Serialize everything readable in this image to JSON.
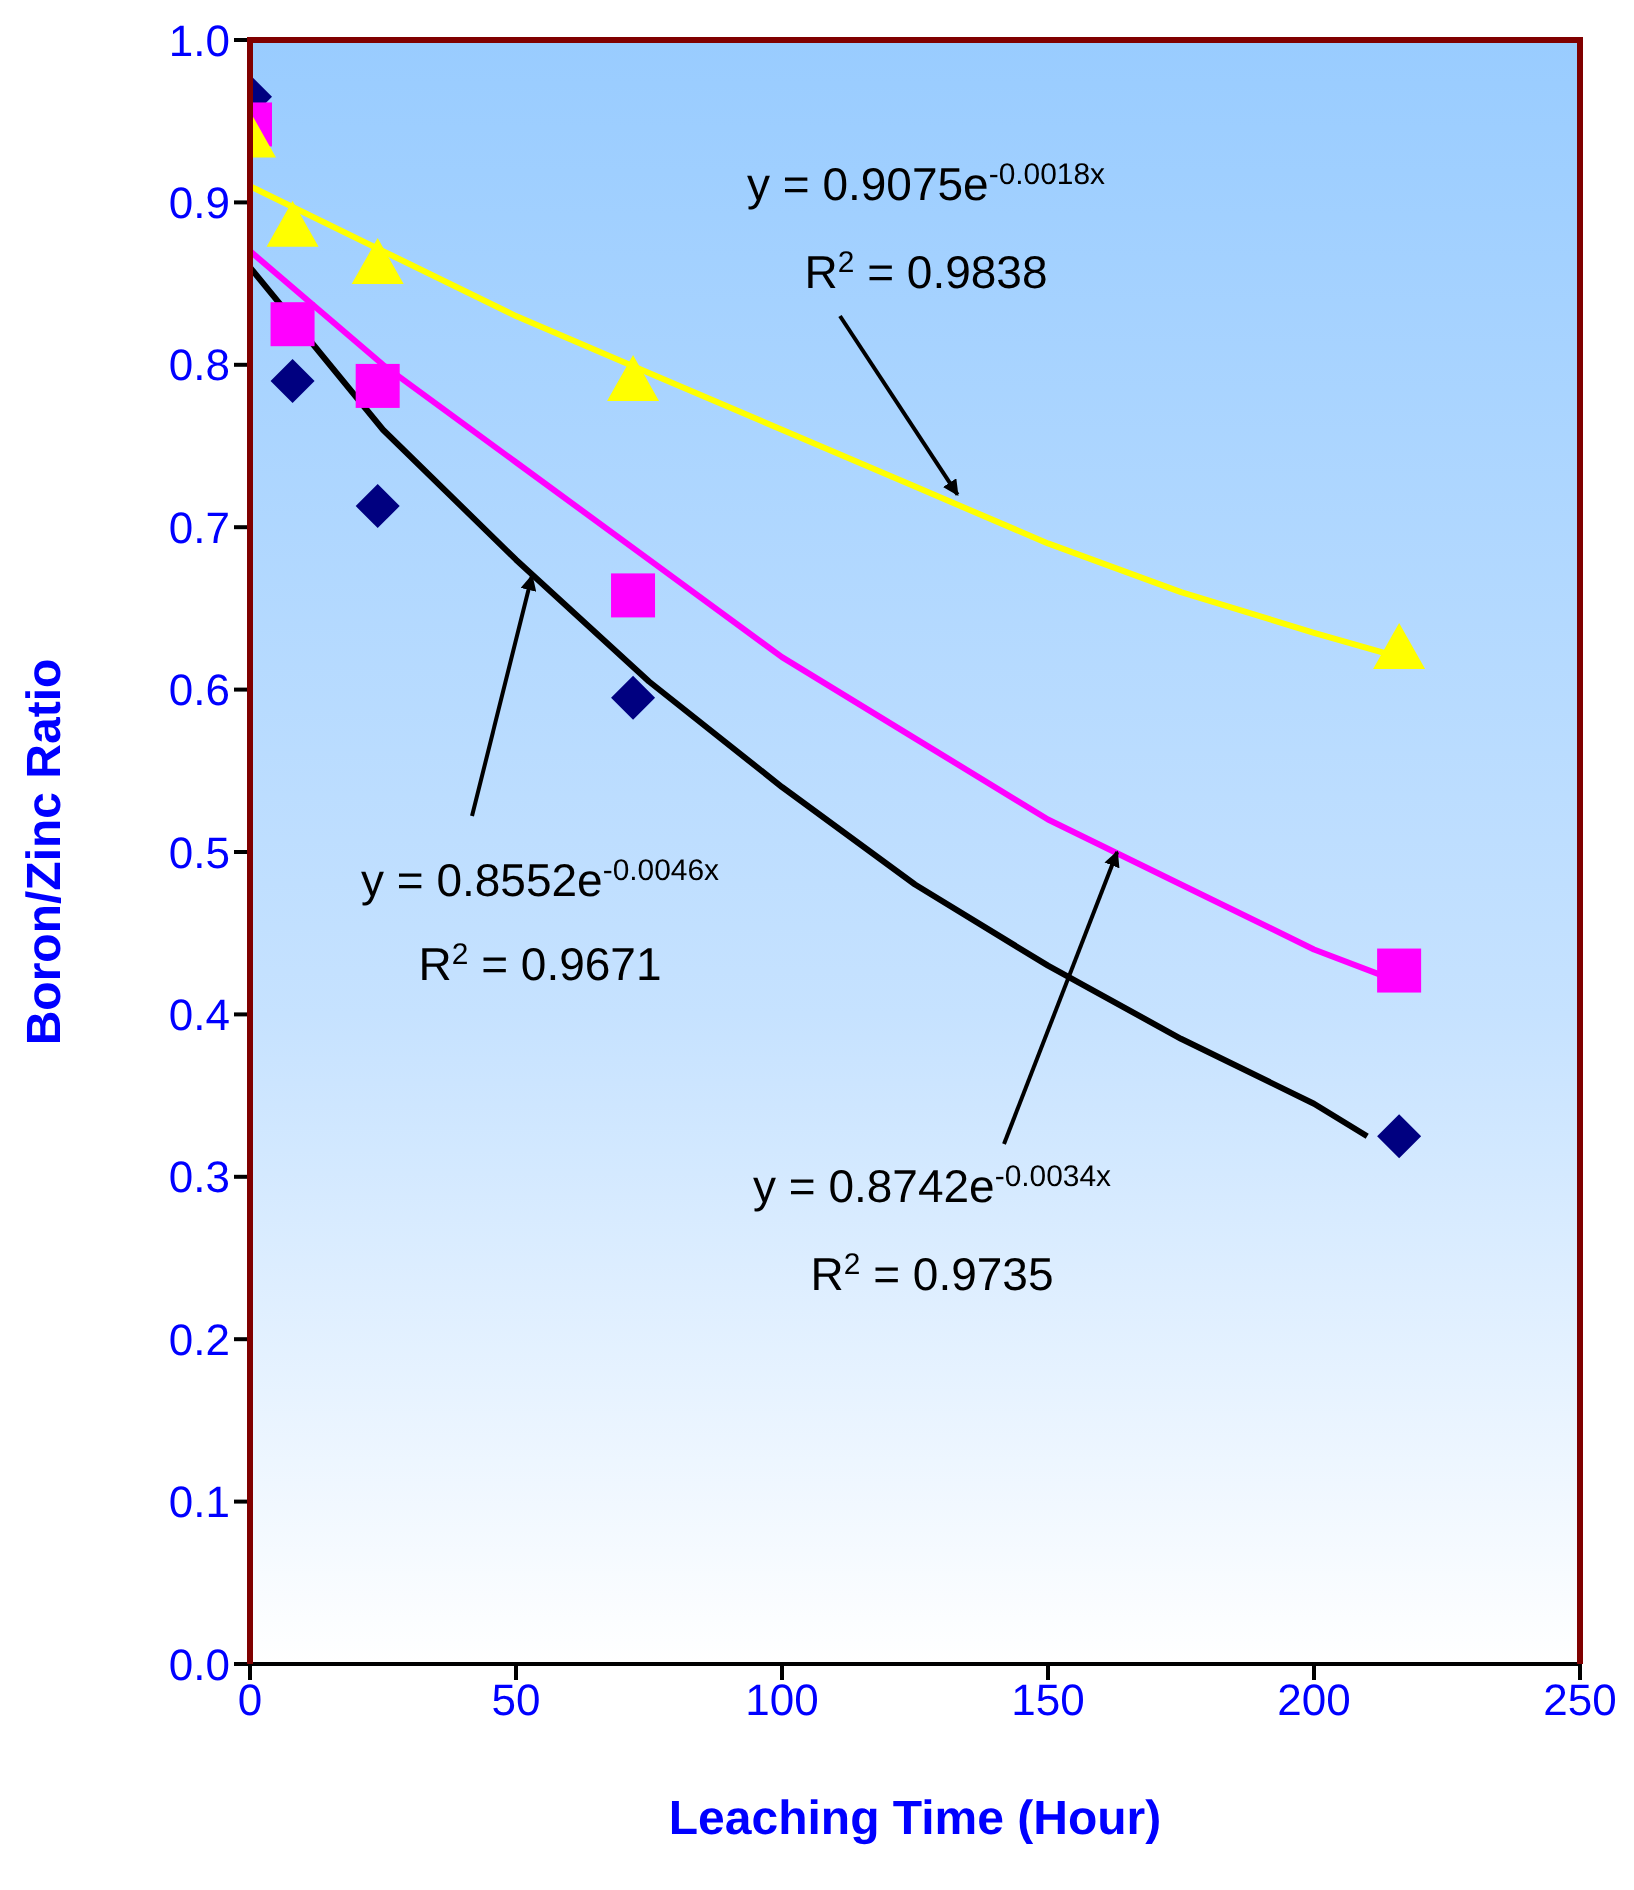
{
  "chart_data": {
    "type": "scatter",
    "xlabel": "Leaching Time (Hour)",
    "ylabel": "Boron/Zinc Ratio",
    "xlim": [
      0,
      250
    ],
    "xticks": [
      0,
      50,
      100,
      150,
      200,
      250
    ],
    "ylim": [
      0,
      1
    ],
    "yticks": [
      {
        "value": 0,
        "label": "0.0"
      },
      0.1,
      0.2,
      0.3,
      0.4,
      0.5,
      0.6,
      0.7,
      0.8,
      0.9,
      {
        "value": 1,
        "label": "1.0"
      }
    ],
    "grid": false,
    "legend": false,
    "x": [
      0,
      8,
      24,
      72,
      216
    ],
    "series": [
      {
        "color": "#000080",
        "marker": "diamond",
        "values": [
          0.965,
          0.79,
          0.713,
          0.595,
          0.325
        ]
      },
      {
        "color": "#ff00ff",
        "marker": "square",
        "values": [
          0.948,
          0.825,
          0.787,
          0.658,
          0.427
        ]
      },
      {
        "color": "#ffff00",
        "marker": "triangle",
        "values": [
          0.94,
          0.885,
          0.862,
          0.79,
          0.625
        ]
      },
      {
        "type": "line",
        "color": "#000000",
        "x": [
          0,
          25,
          50,
          75,
          100,
          125,
          150,
          175,
          200,
          210
        ],
        "values": [
          0.86,
          0.76,
          0.68,
          0.605,
          0.54,
          0.48,
          0.43,
          0.385,
          0.345,
          0.325
        ]
      },
      {
        "type": "line",
        "color": "#ff00ff",
        "x": [
          0,
          25,
          50,
          75,
          100,
          125,
          150,
          175,
          200,
          216
        ],
        "values": [
          0.87,
          0.8,
          0.74,
          0.68,
          0.62,
          0.57,
          0.52,
          0.48,
          0.44,
          0.42
        ]
      },
      {
        "type": "line",
        "color": "#ffff00",
        "x": [
          0,
          25,
          50,
          75,
          100,
          125,
          150,
          175,
          200,
          216
        ],
        "values": [
          0.91,
          0.87,
          0.83,
          0.795,
          0.76,
          0.725,
          0.69,
          0.66,
          0.635,
          0.62
        ]
      }
    ],
    "annotations": [
      "y = 0.9075e$^{-0.0018x}$",
      {
        "text": "R$^{2}$ = 0.9838",
        "x": 133,
        "y": 0.72
      },
      {
        "text": "y = 0.8552e$^{-0.0046x}$",
        "x": 53,
        "y": 0.67
      },
      "R$^{2}$ = 0.9671",
      {
        "text": "y = 0.8742e$^{-0.0034x}$",
        "x": 163,
        "y": 0.5
      },
      "R$^{2}$ = 0.9735"
    ]
  }
}
